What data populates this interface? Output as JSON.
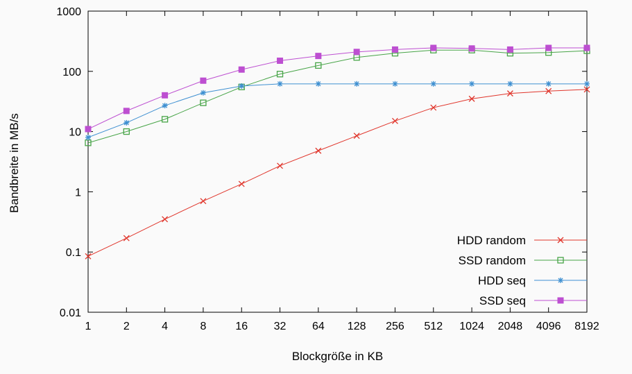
{
  "page": {
    "background": "#fafafa"
  },
  "chart_data": {
    "type": "line",
    "title": "",
    "xlabel": "Blockgröße in KB",
    "ylabel": "Bandbreite in MB/s",
    "x_scale": "log2",
    "y_scale": "log10",
    "xlim": [
      1,
      8192
    ],
    "ylim": [
      0.01,
      1000
    ],
    "grid": false,
    "legend_position": "inside bottom right",
    "categories": [
      1,
      2,
      4,
      8,
      16,
      32,
      64,
      128,
      256,
      512,
      1024,
      2048,
      4096,
      8192
    ],
    "x_tick_labels": [
      "1",
      "2",
      "4",
      "8",
      "16",
      "32",
      "64",
      "128",
      "256",
      "512",
      "1024",
      "2048",
      "4096",
      "8192"
    ],
    "y_ticks": [
      0.01,
      0.1,
      1,
      10,
      100,
      1000
    ],
    "y_tick_labels": [
      "0.01",
      "0.1",
      "1",
      "10",
      "100",
      "1000"
    ],
    "series": [
      {
        "name": "HDD random",
        "color": "#e0352b",
        "marker": "cross",
        "values": [
          0.085,
          0.17,
          0.35,
          0.7,
          1.35,
          2.7,
          4.8,
          8.5,
          15,
          25,
          35,
          43,
          47,
          50
        ]
      },
      {
        "name": "SSD random",
        "color": "#47a447",
        "marker": "open-square",
        "values": [
          6.5,
          10,
          16,
          30,
          55,
          90,
          125,
          170,
          200,
          225,
          225,
          200,
          205,
          220
        ]
      },
      {
        "name": "HDD seq",
        "color": "#3d8fd1",
        "marker": "asterisk",
        "values": [
          8,
          14,
          27,
          44,
          57,
          62,
          62,
          62,
          62,
          62,
          62,
          62,
          62,
          62
        ]
      },
      {
        "name": "SSD seq",
        "color": "#bd4fd1",
        "marker": "filled-square",
        "values": [
          11,
          22,
          40,
          70,
          107,
          150,
          180,
          210,
          230,
          245,
          240,
          230,
          245,
          245
        ]
      }
    ]
  }
}
